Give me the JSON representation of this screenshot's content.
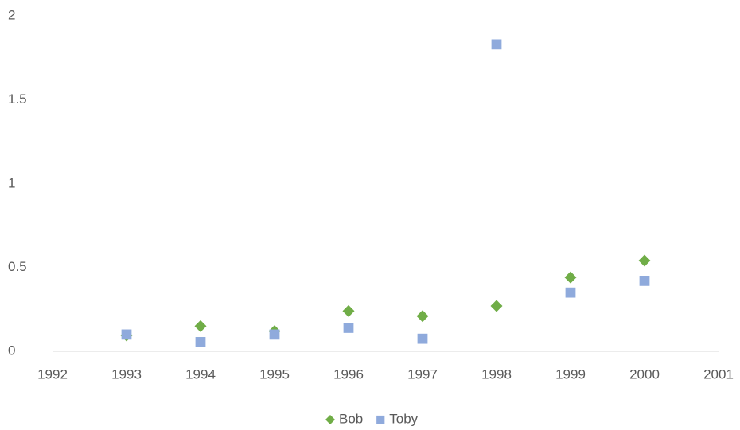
{
  "chart_data": {
    "type": "scatter",
    "series": [
      {
        "name": "Bob",
        "color": "#70ad47",
        "marker": "diamond",
        "x": [
          1993,
          1994,
          1995,
          1996,
          1997,
          1998,
          1999,
          2000
        ],
        "values": [
          0.095,
          0.15,
          0.12,
          0.24,
          0.21,
          0.27,
          0.44,
          0.54
        ]
      },
      {
        "name": "Toby",
        "color": "#8faadc",
        "marker": "square",
        "x": [
          1993,
          1994,
          1995,
          1996,
          1997,
          1998,
          1999,
          2000
        ],
        "values": [
          0.1,
          0.055,
          0.1,
          0.14,
          0.075,
          1.83,
          0.35,
          0.42
        ]
      }
    ],
    "xlim": [
      1992,
      2001
    ],
    "xticks": [
      1992,
      1993,
      1994,
      1995,
      1996,
      1997,
      1998,
      1999,
      2000,
      2001
    ],
    "ylim": [
      0,
      2
    ],
    "yticks": [
      0,
      0.5,
      1,
      1.5,
      2
    ],
    "grid": false,
    "legend": "bottom"
  }
}
